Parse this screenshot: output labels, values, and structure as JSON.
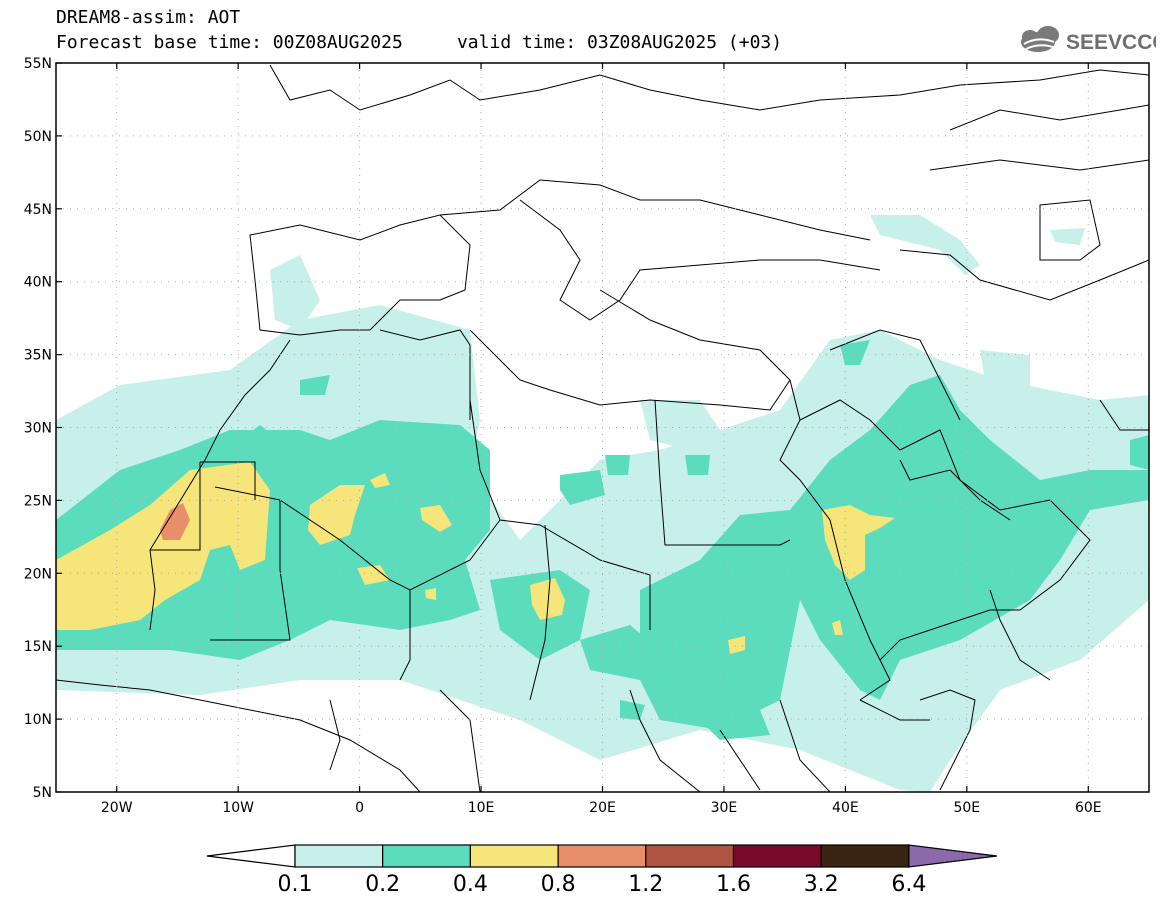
{
  "header": {
    "title_line1": "DREAM8-assim: AOT",
    "base_time_label": "Forecast base time: 00Z08AUG2025",
    "valid_time_label": "valid time: 03Z08AUG2025 (+03)"
  },
  "logo": {
    "text": "SEEVCCC",
    "icon": "cloud-icon"
  },
  "axes": {
    "lat_labels": [
      "55N",
      "50N",
      "45N",
      "40N",
      "35N",
      "30N",
      "25N",
      "20N",
      "15N",
      "10N",
      "5N"
    ],
    "lon_labels": [
      "20W",
      "10W",
      "0",
      "10E",
      "20E",
      "30E",
      "40E",
      "50E",
      "60E"
    ],
    "lat_values": [
      55,
      50,
      45,
      40,
      35,
      30,
      25,
      20,
      15,
      10,
      5
    ],
    "lon_values": [
      -20,
      -10,
      0,
      10,
      20,
      30,
      40,
      50,
      60
    ],
    "lon_range": [
      -25,
      65
    ],
    "lat_range": [
      5,
      55
    ]
  },
  "colorbar": {
    "labels": [
      "0.1",
      "0.2",
      "0.4",
      "0.8",
      "1.2",
      "1.6",
      "3.2",
      "6.4"
    ],
    "colors": [
      "#c8f0ea",
      "#5bdcbd",
      "#f5e57a",
      "#e88e68",
      "#b05542",
      "#7a0a2c",
      "#3a2512",
      "#8a6aa8"
    ],
    "below_color": "#ffffff"
  },
  "field": {
    "variable": "AOT",
    "level_colors": {
      "l1": "#c8f0ea",
      "l2": "#5bdcbd",
      "l3": "#f5e57a",
      "l4": "#e88e68"
    }
  }
}
